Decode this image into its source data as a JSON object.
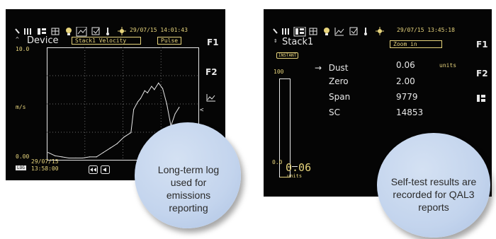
{
  "left_screen": {
    "datetime": "29/07/15 14:01:43",
    "device_label": "Device",
    "channel_name": "Stack1 Velocity",
    "mode_label": "Pulse",
    "y_max": "10.0",
    "y_min": "0.00",
    "y_unit": "m/s",
    "bottom_date": "29/07/15",
    "bottom_time": "13:58:00",
    "f1_label": "F1",
    "f2_label": "F2",
    "chart_data": {
      "type": "line",
      "ylim": [
        0,
        10
      ],
      "x": [
        0,
        5,
        10,
        15,
        20,
        25,
        30,
        35,
        40,
        45,
        50,
        55,
        60,
        62,
        65,
        67,
        70,
        72,
        75,
        77,
        80,
        83,
        86,
        89,
        92,
        95
      ],
      "y": [
        0.6,
        0.3,
        0.2,
        0.1,
        0.1,
        0.1,
        0.2,
        0.2,
        0.6,
        1.0,
        1.4,
        2.0,
        2.4,
        4.5,
        5.2,
        5.5,
        6.2,
        6.0,
        6.6,
        6.3,
        6.9,
        6.4,
        5.0,
        3.0,
        4.1,
        4.7
      ]
    }
  },
  "right_screen": {
    "datetime": "29/07/15 13:45:18",
    "stack_name": "Stack1",
    "zoom_label": "Zoom in",
    "instant_tag": "INSTANT",
    "scale_max": "100",
    "scale_min": "0.0",
    "current_value": "0.06",
    "current_unit": "units",
    "rows": [
      {
        "label": "Dust",
        "value": "0.06",
        "unit": "units",
        "selected": true
      },
      {
        "label": "Zero",
        "value": "2.00",
        "unit": "",
        "selected": false
      },
      {
        "label": "Span",
        "value": "9779",
        "unit": "",
        "selected": false
      },
      {
        "label": "SC",
        "value": "14853",
        "unit": "",
        "selected": false
      }
    ],
    "f1_label": "F1",
    "f2_label": "F2"
  },
  "callouts": {
    "left": "Long-term log used for emissions reporting",
    "right": "Self-test results are recorded for QAL3 reports"
  },
  "colors": {
    "screen_bg": "#050505",
    "accent_yellow": "#e7d47c",
    "bubble": "#c3d4ed"
  }
}
